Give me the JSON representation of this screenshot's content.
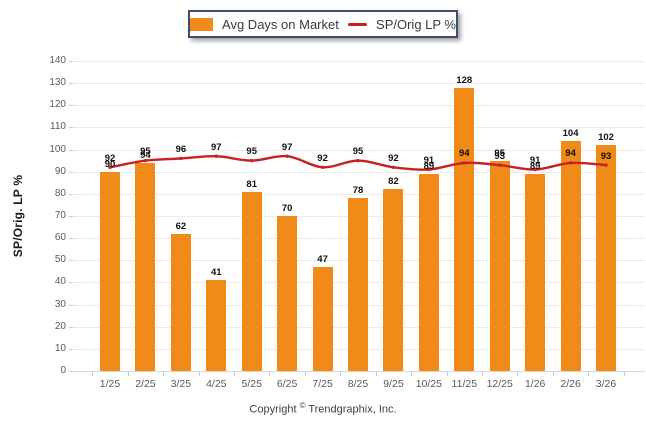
{
  "legend": {
    "bar_label": "Avg Days on Market",
    "line_label": "SP/Orig LP %"
  },
  "y_axis_title": "SP/Orig. LP %",
  "footer_text": "Copyright © Trendgraphix, Inc.",
  "colors": {
    "bar": "#F08A19",
    "line": "#C92121",
    "legend_border": "#3D4E6D",
    "value_label": "#111111",
    "tick_label": "#595959"
  },
  "chart_data": {
    "type": "bar",
    "subtype": "bar+line combo",
    "categories": [
      "1/25",
      "2/25",
      "3/25",
      "4/25",
      "5/25",
      "6/25",
      "7/25",
      "8/25",
      "9/25",
      "10/25",
      "11/25",
      "12/25",
      "1/26",
      "2/26",
      "3/26"
    ],
    "series": [
      {
        "name": "Avg Days on Market",
        "type": "bar",
        "color": "#F08A19",
        "values": [
          90,
          94,
          62,
          41,
          81,
          70,
          47,
          78,
          82,
          89,
          128,
          95,
          89,
          104,
          102
        ]
      },
      {
        "name": "SP/Orig LP %",
        "type": "line",
        "color": "#C92121",
        "values": [
          92,
          95,
          96,
          97,
          95,
          97,
          92,
          95,
          92,
          91,
          94,
          93,
          91,
          94,
          93
        ]
      }
    ],
    "title": "",
    "xlabel": "",
    "ylabel": "SP/Orig. LP %",
    "ylim": [
      0,
      140
    ],
    "ytick_step": 10,
    "grid": true,
    "data_labels": true,
    "legend_position": "top-center"
  }
}
